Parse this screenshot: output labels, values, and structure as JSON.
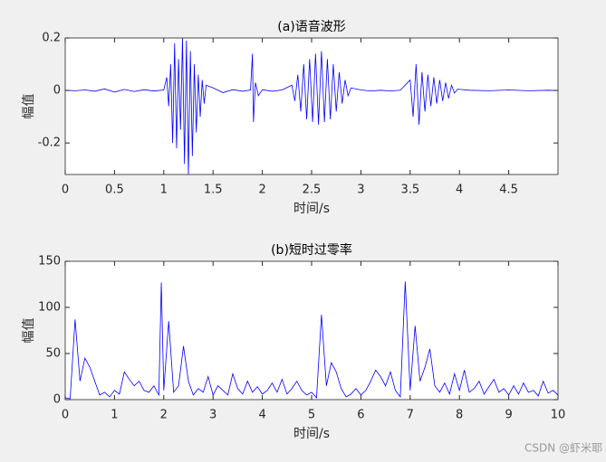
{
  "chart_data": [
    {
      "type": "line",
      "title": "(a)语音波形",
      "xlabel": "时间/s",
      "ylabel": "幅值",
      "xlim": [
        0,
        5
      ],
      "ylim": [
        -0.32,
        0.2
      ],
      "xticks": [
        0,
        0.5,
        1,
        1.5,
        2,
        2.5,
        3,
        3.5,
        4,
        4.5
      ],
      "yticks": [
        -0.2,
        0,
        0.2
      ],
      "series": [
        {
          "color": "#0000ff",
          "x": [
            0,
            0.1,
            0.2,
            0.3,
            0.4,
            0.5,
            0.6,
            0.7,
            0.8,
            0.9,
            1.0,
            1.03,
            1.05,
            1.07,
            1.09,
            1.11,
            1.13,
            1.15,
            1.17,
            1.19,
            1.21,
            1.23,
            1.25,
            1.27,
            1.29,
            1.31,
            1.33,
            1.35,
            1.37,
            1.39,
            1.41,
            1.43,
            1.5,
            1.6,
            1.7,
            1.8,
            1.88,
            1.9,
            1.91,
            1.93,
            1.96,
            2.0,
            2.1,
            2.2,
            2.3,
            2.33,
            2.36,
            2.39,
            2.42,
            2.45,
            2.48,
            2.51,
            2.54,
            2.57,
            2.6,
            2.63,
            2.66,
            2.69,
            2.72,
            2.75,
            2.78,
            2.81,
            2.84,
            2.87,
            2.9,
            3.0,
            3.1,
            3.2,
            3.3,
            3.4,
            3.5,
            3.53,
            3.56,
            3.59,
            3.62,
            3.65,
            3.68,
            3.71,
            3.74,
            3.77,
            3.8,
            3.83,
            3.86,
            3.89,
            3.92,
            3.95,
            3.98,
            4.1,
            4.3,
            4.5,
            4.7,
            4.9,
            4.99
          ],
          "values": [
            0.001,
            -0.001,
            0.002,
            -0.003,
            0.006,
            -0.006,
            0.004,
            -0.004,
            0.003,
            -0.002,
            0.002,
            0.05,
            -0.06,
            0.1,
            -0.2,
            0.18,
            -0.22,
            0.12,
            -0.15,
            0.2,
            -0.28,
            0.19,
            -0.32,
            0.15,
            -0.25,
            0.1,
            -0.16,
            0.06,
            -0.1,
            0.04,
            -0.05,
            0.02,
            0.01,
            -0.008,
            0.003,
            -0.003,
            0.002,
            0.14,
            -0.12,
            0.03,
            -0.02,
            0.003,
            -0.003,
            0.002,
            0.02,
            -0.04,
            0.06,
            -0.08,
            0.1,
            -0.11,
            0.12,
            -0.12,
            0.14,
            -0.13,
            0.15,
            -0.12,
            0.12,
            -0.11,
            0.1,
            -0.08,
            0.07,
            -0.05,
            0.04,
            -0.02,
            0.01,
            0.002,
            -0.002,
            0.001,
            -0.002,
            0.001,
            0.04,
            -0.1,
            0.1,
            -0.13,
            0.07,
            -0.08,
            0.06,
            -0.06,
            0.05,
            -0.05,
            0.04,
            -0.04,
            0.03,
            -0.03,
            0.02,
            -0.01,
            0.005,
            0.001,
            -0.001,
            0.002,
            -0.001,
            0.001,
            0
          ]
        }
      ]
    },
    {
      "type": "line",
      "title": "(b)短时过零率",
      "xlabel": "时间/s",
      "ylabel": "幅值",
      "xlim": [
        0,
        10
      ],
      "ylim": [
        0,
        150
      ],
      "xticks": [
        0,
        1,
        2,
        3,
        4,
        5,
        6,
        7,
        8,
        9,
        10
      ],
      "yticks": [
        0,
        50,
        100,
        150
      ],
      "series": [
        {
          "color": "#0000ff",
          "x": [
            0,
            0.1,
            0.2,
            0.3,
            0.4,
            0.5,
            0.6,
            0.7,
            0.8,
            0.9,
            1.0,
            1.1,
            1.2,
            1.3,
            1.4,
            1.5,
            1.6,
            1.7,
            1.8,
            1.9,
            1.95,
            2.0,
            2.1,
            2.2,
            2.3,
            2.4,
            2.5,
            2.6,
            2.7,
            2.8,
            2.9,
            3.0,
            3.1,
            3.2,
            3.3,
            3.4,
            3.5,
            3.6,
            3.7,
            3.8,
            3.9,
            4.0,
            4.1,
            4.2,
            4.3,
            4.4,
            4.5,
            4.6,
            4.7,
            4.8,
            4.9,
            5.0,
            5.1,
            5.2,
            5.3,
            5.4,
            5.5,
            5.6,
            5.7,
            5.8,
            5.9,
            6.0,
            6.1,
            6.2,
            6.3,
            6.4,
            6.5,
            6.6,
            6.7,
            6.8,
            6.9,
            7.0,
            7.1,
            7.2,
            7.3,
            7.4,
            7.5,
            7.6,
            7.7,
            7.8,
            7.9,
            8.0,
            8.1,
            8.2,
            8.3,
            8.4,
            8.5,
            8.6,
            8.7,
            8.8,
            8.9,
            9.0,
            9.1,
            9.2,
            9.3,
            9.4,
            9.5,
            9.6,
            9.7,
            9.8,
            9.9,
            10.0
          ],
          "values": [
            2,
            1,
            87,
            20,
            45,
            35,
            20,
            5,
            8,
            3,
            10,
            6,
            30,
            22,
            15,
            20,
            10,
            8,
            15,
            5,
            127,
            10,
            85,
            8,
            15,
            58,
            20,
            5,
            12,
            8,
            25,
            5,
            15,
            10,
            5,
            28,
            12,
            6,
            20,
            8,
            14,
            6,
            10,
            18,
            8,
            22,
            6,
            12,
            20,
            10,
            5,
            8,
            2,
            92,
            15,
            40,
            30,
            12,
            3,
            6,
            12,
            5,
            10,
            20,
            32,
            25,
            15,
            30,
            10,
            3,
            128,
            10,
            80,
            20,
            35,
            55,
            15,
            8,
            18,
            6,
            28,
            10,
            32,
            8,
            12,
            20,
            6,
            14,
            22,
            8,
            12,
            5,
            15,
            6,
            18,
            8,
            10,
            4,
            20,
            7,
            10,
            5
          ]
        }
      ]
    }
  ],
  "watermark": "CSDN @虾米耶"
}
